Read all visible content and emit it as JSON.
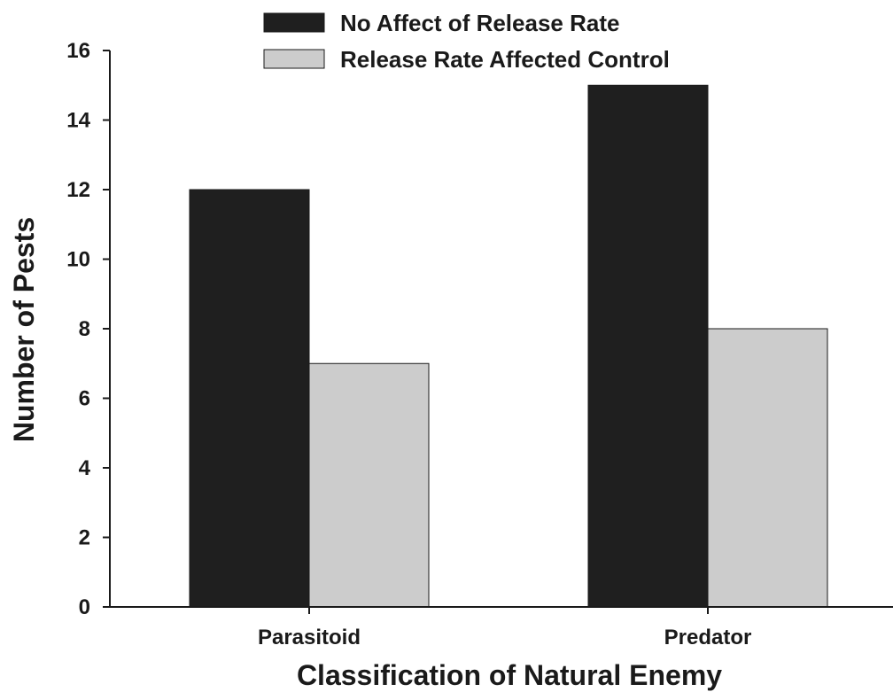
{
  "chart_data": {
    "type": "bar",
    "title": "",
    "xlabel": "Classification of Natural Enemy",
    "ylabel": "Number of Pests",
    "categories": [
      "Parasitoid",
      "Predator"
    ],
    "series": [
      {
        "name": "No Affect of Release Rate",
        "values": [
          12,
          15
        ],
        "color": "#1f1f1f"
      },
      {
        "name": "Release Rate Affected Control",
        "values": [
          7,
          8
        ],
        "color": "#cccccc"
      }
    ],
    "ylim": [
      0,
      16
    ],
    "yticks": [
      0,
      2,
      4,
      6,
      8,
      10,
      12,
      14,
      16
    ],
    "grid": false,
    "legend_position": "top"
  }
}
